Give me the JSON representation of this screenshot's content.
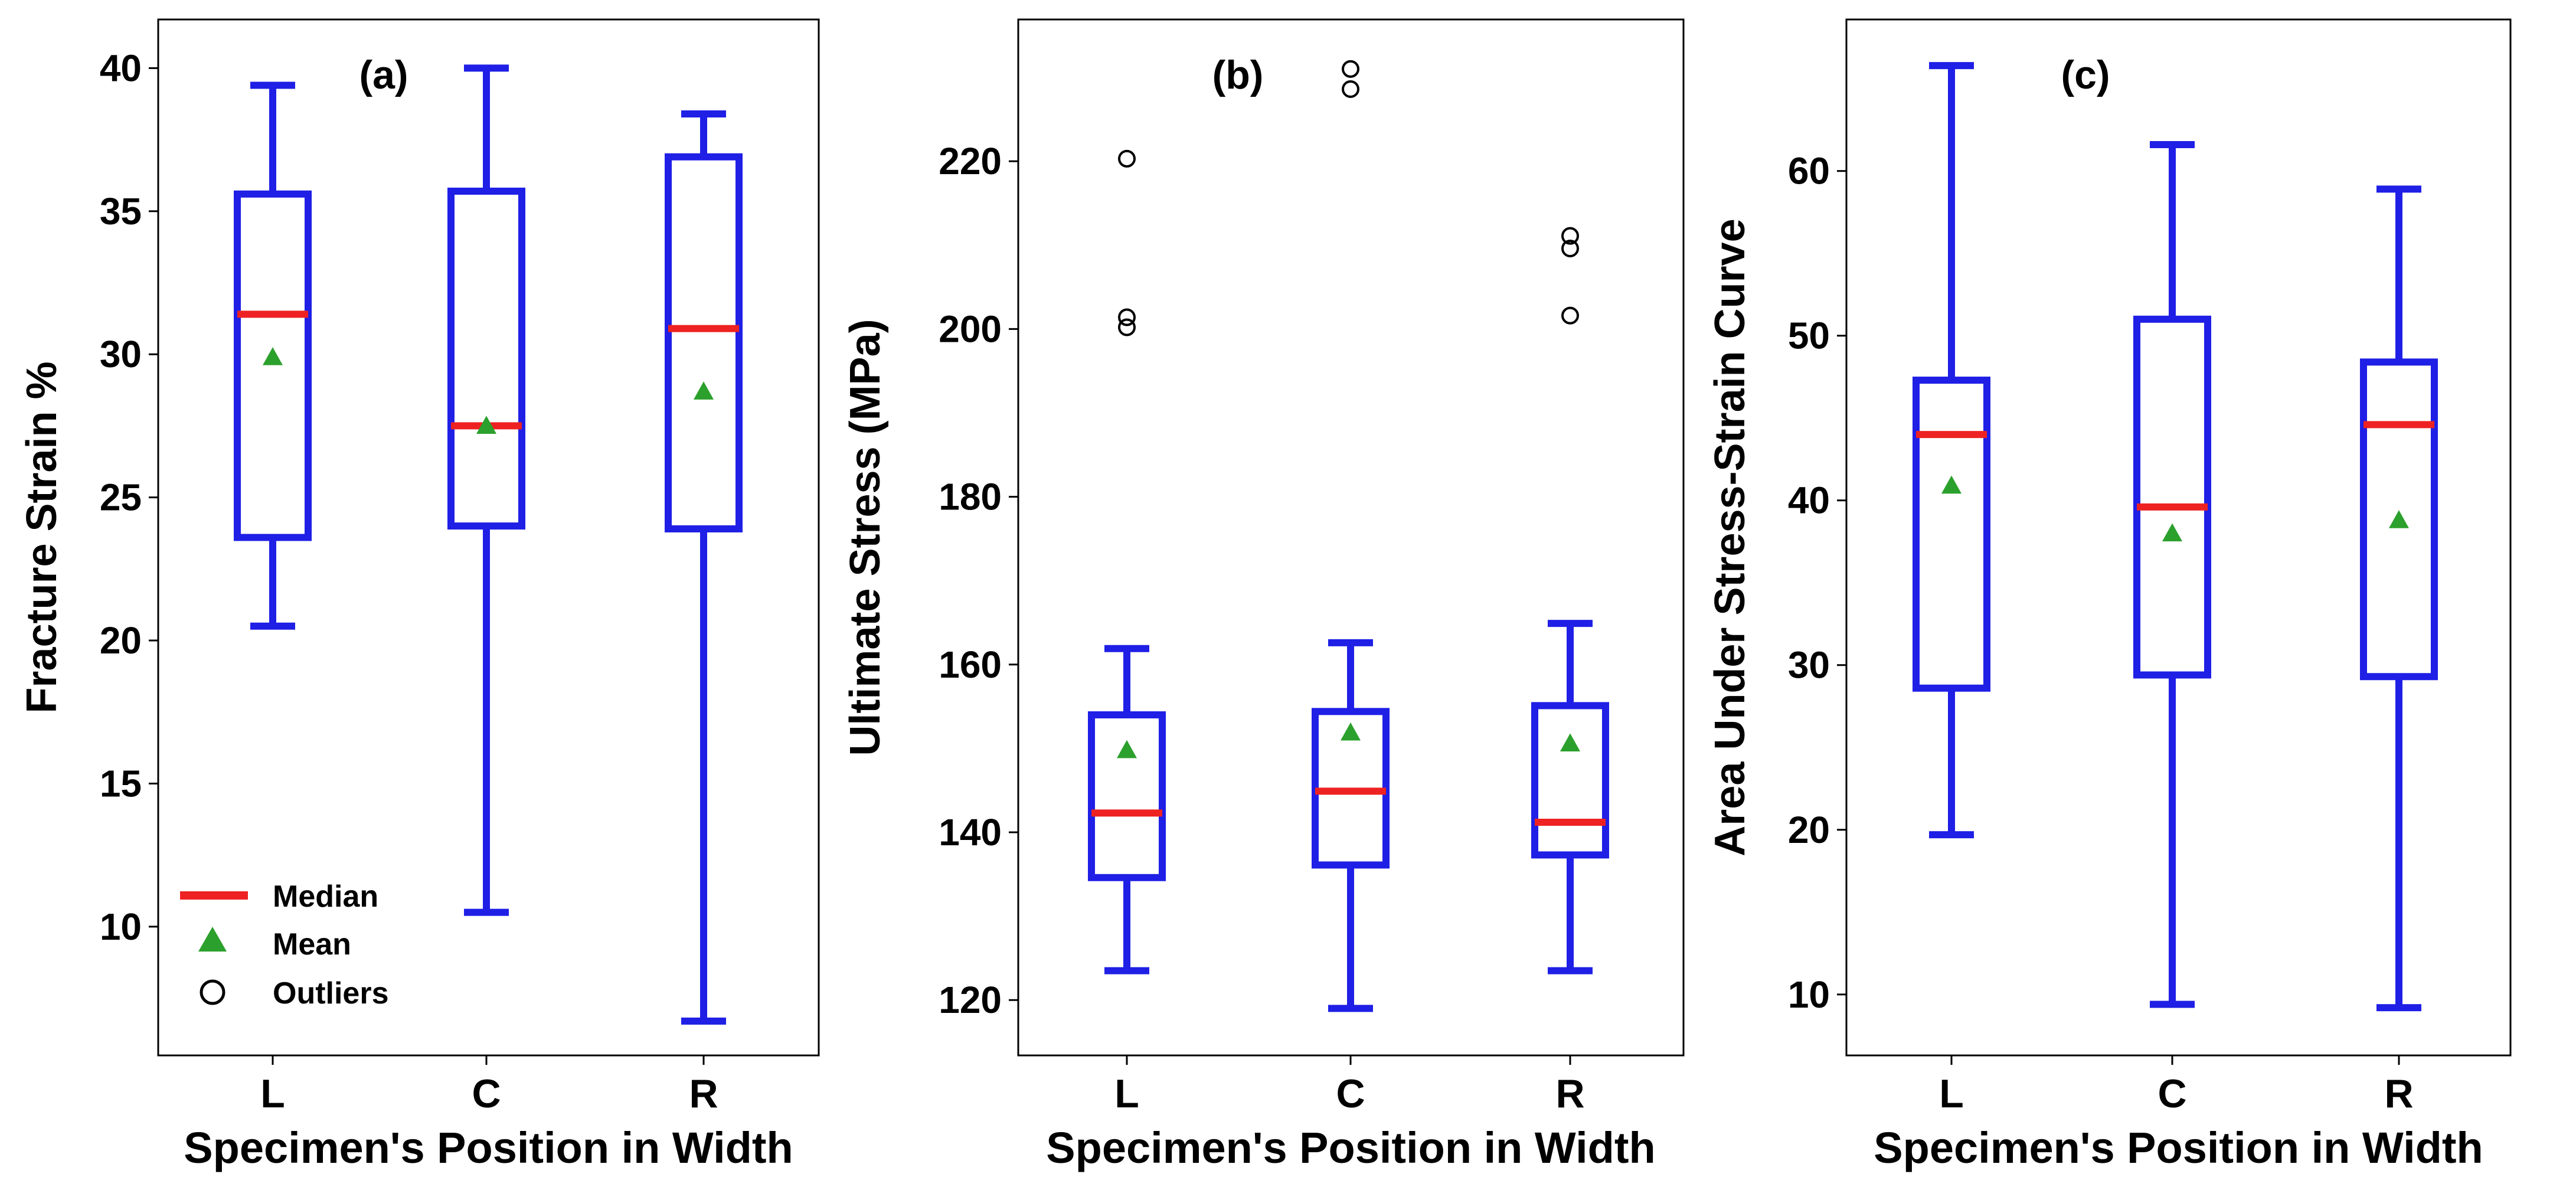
{
  "colors": {
    "box": "#1f1fe6",
    "median": "#ee2222",
    "mean": "#2ca02c",
    "outlier": "#000000",
    "frame": "#000000"
  },
  "legend": {
    "median_label": "Median",
    "mean_label": "Mean",
    "outliers_label": "Outliers"
  },
  "chart_data": [
    {
      "type": "box",
      "panel": "(a)",
      "xlabel": "Specimen's Position in Width",
      "ylabel": "Fracture Strain %",
      "ylim": [
        5.5,
        41.7
      ],
      "yticks": [
        10,
        15,
        20,
        25,
        30,
        35,
        40
      ],
      "categories": [
        "L",
        "C",
        "R"
      ],
      "boxes": [
        {
          "whisker_low": 20.5,
          "q1": 23.6,
          "median": 31.4,
          "q3": 35.6,
          "whisker_high": 39.4,
          "mean": 29.9,
          "outliers": []
        },
        {
          "whisker_low": 10.5,
          "q1": 24.0,
          "median": 27.5,
          "q3": 35.7,
          "whisker_high": 40.0,
          "mean": 27.5,
          "outliers": []
        },
        {
          "whisker_low": 6.7,
          "q1": 23.9,
          "median": 30.9,
          "q3": 36.9,
          "whisker_high": 38.4,
          "mean": 28.7,
          "outliers": []
        }
      ],
      "legend_shown": true
    },
    {
      "type": "box",
      "panel": "(b)",
      "xlabel": "Specimen's Position in Width",
      "ylabel": "Ultimate Stress (MPa)",
      "ylim": [
        113.4,
        236.9
      ],
      "yticks": [
        120,
        140,
        160,
        180,
        200,
        220
      ],
      "categories": [
        "L",
        "C",
        "R"
      ],
      "boxes": [
        {
          "whisker_low": 123.5,
          "q1": 134.6,
          "median": 142.3,
          "q3": 154.0,
          "whisker_high": 161.9,
          "mean": 149.8,
          "outliers": [
            220.3,
            201.4,
            200.2
          ]
        },
        {
          "whisker_low": 119.0,
          "q1": 136.1,
          "median": 144.9,
          "q3": 154.4,
          "whisker_high": 162.6,
          "mean": 151.9,
          "outliers": [
            231.0,
            228.6
          ]
        },
        {
          "whisker_low": 123.5,
          "q1": 137.3,
          "median": 141.2,
          "q3": 155.1,
          "whisker_high": 164.9,
          "mean": 150.6,
          "outliers": [
            211.1,
            209.6,
            201.6
          ]
        }
      ],
      "legend_shown": false
    },
    {
      "type": "box",
      "panel": "(c)",
      "xlabel": "Specimen's Position in Width",
      "ylabel": "Area Under Stress-Strain Curve",
      "ylim": [
        6.3,
        69.2
      ],
      "yticks": [
        10,
        20,
        30,
        40,
        50,
        60
      ],
      "categories": [
        "L",
        "C",
        "R"
      ],
      "boxes": [
        {
          "whisker_low": 19.7,
          "q1": 28.6,
          "median": 44.0,
          "q3": 47.3,
          "whisker_high": 66.4,
          "mean": 40.9,
          "outliers": []
        },
        {
          "whisker_low": 9.4,
          "q1": 29.4,
          "median": 39.6,
          "q3": 51.0,
          "whisker_high": 61.6,
          "mean": 38.0,
          "outliers": []
        },
        {
          "whisker_low": 9.2,
          "q1": 29.3,
          "median": 44.6,
          "q3": 48.4,
          "whisker_high": 58.9,
          "mean": 38.8,
          "outliers": []
        }
      ],
      "legend_shown": false
    }
  ]
}
